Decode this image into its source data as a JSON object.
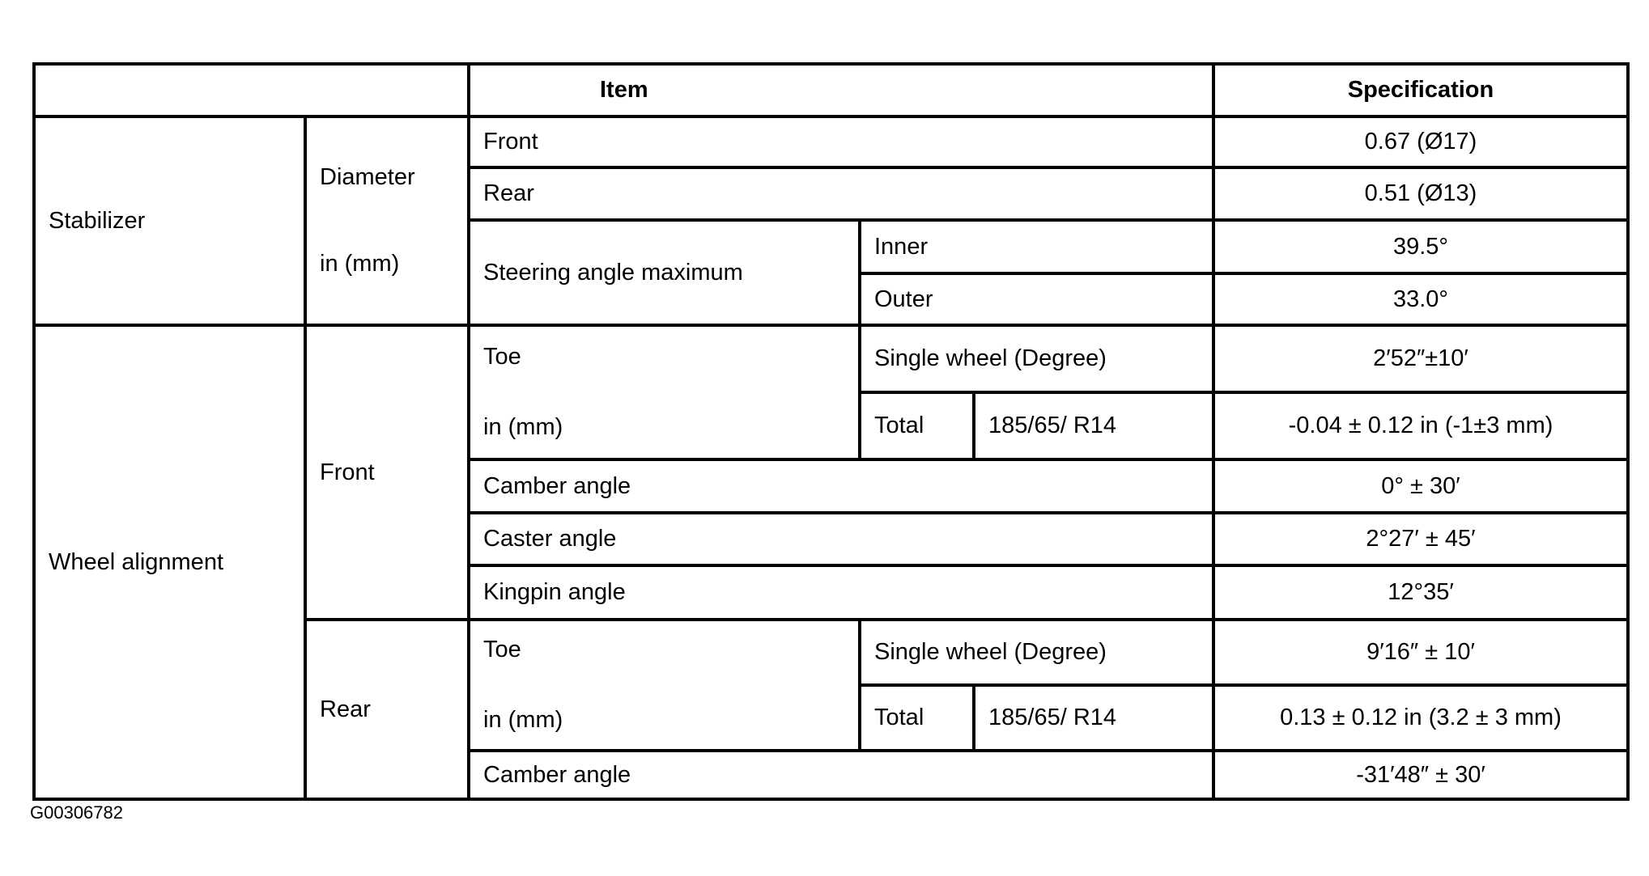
{
  "header": {
    "item": "Item",
    "specification": "Specification"
  },
  "stabilizer": {
    "label": "Stabilizer",
    "diameter_label": "Diameter",
    "diameter_unit": "in (mm)",
    "rows": [
      {
        "item": "Front",
        "spec": "0.67 (Ø17)"
      },
      {
        "item": "Rear",
        "spec": "0.51 (Ø13)"
      }
    ],
    "steering": {
      "label": "Steering angle maximum",
      "rows": [
        {
          "item": "Inner",
          "spec": "39.5°"
        },
        {
          "item": "Outer",
          "spec": "33.0°"
        }
      ]
    }
  },
  "wheel_alignment": {
    "label": "Wheel alignment",
    "front": {
      "label": "Front",
      "toe_label": "Toe",
      "toe_unit": "in (mm)",
      "single_wheel": {
        "item": "Single wheel (Degree)",
        "spec": "2′52″±10′"
      },
      "total": {
        "item": "Total",
        "tire": "185/65/ R14",
        "spec": "-0.04 ± 0.12 in (-1±3 mm)"
      },
      "camber": {
        "item": "Camber angle",
        "spec": "0° ± 30′"
      },
      "caster": {
        "item": "Caster angle",
        "spec": "2°27′ ± 45′"
      },
      "kingpin": {
        "item": "Kingpin angle",
        "spec": "12°35′"
      }
    },
    "rear": {
      "label": "Rear",
      "toe_label": "Toe",
      "toe_unit": "in (mm)",
      "single_wheel": {
        "item": "Single wheel (Degree)",
        "spec": "9′16″ ± 10′"
      },
      "total": {
        "item": "Total",
        "tire": "185/65/ R14",
        "spec": "0.13 ± 0.12 in (3.2 ± 3 mm)"
      },
      "camber": {
        "item": "Camber angle",
        "spec": "-31′48″ ± 30′"
      }
    }
  },
  "caption": "G00306782"
}
